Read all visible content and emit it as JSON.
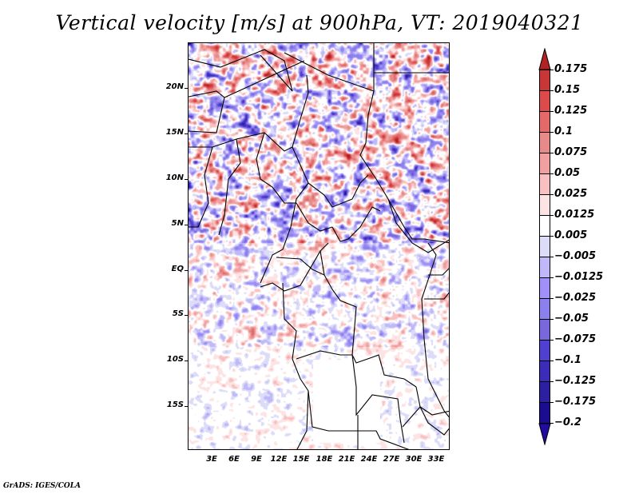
{
  "title": "Vertical velocity [m/s] at 900hPa, VT: 2019040321",
  "credit": "GrADS: IGES/COLA",
  "map": {
    "variable": "Vertical velocity",
    "units": "m/s",
    "level": "900hPa",
    "valid_time": "2019040321",
    "region": "Central Africa",
    "y_axis_labels": [
      "20N",
      "15N",
      "10N",
      "5N",
      "EQ",
      "5S",
      "10S",
      "15S"
    ],
    "x_axis_labels": [
      "3E",
      "6E",
      "9E",
      "12E",
      "15E",
      "18E",
      "21E",
      "24E",
      "27E",
      "30E",
      "33E"
    ]
  },
  "colorbar": {
    "labels": [
      "0.175",
      "0.15",
      "0.125",
      "0.1",
      "0.075",
      "0.05",
      "0.025",
      "0.0125",
      "0.005",
      "−0.005",
      "−0.0125",
      "−0.025",
      "−0.05",
      "−0.075",
      "−0.1",
      "−0.125",
      "−0.175",
      "−0.2"
    ],
    "colors": [
      "#b22222",
      "#c83737",
      "#dc4b4b",
      "#e46a6a",
      "#e68a8a",
      "#f0a0a0",
      "#f8c0c0",
      "#fde4e4",
      "#ffffff",
      "#dcdcf8",
      "#c0b8f8",
      "#a090f8",
      "#8c80ec",
      "#7868dc",
      "#5040d0",
      "#3c2cb8",
      "#2c20a0",
      "#1c0c90"
    ],
    "top_arrow_color": "#b22222",
    "bottom_arrow_color": "#200ca0"
  }
}
